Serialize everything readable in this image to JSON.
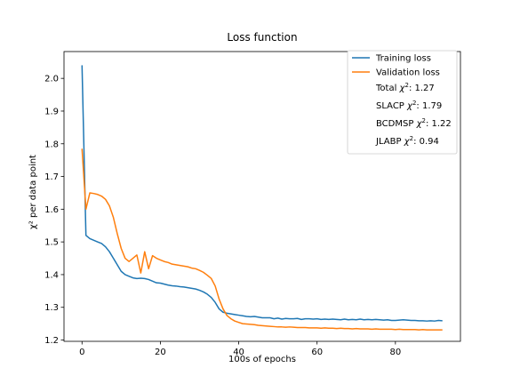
{
  "chart_data": {
    "type": "line",
    "title": "Loss function",
    "xlabel": "100s of epochs",
    "ylabel": "χ² per data point",
    "xlim": [
      -4.6,
      96.6
    ],
    "ylim": [
      1.196,
      2.082
    ],
    "xticks": [
      0,
      20,
      40,
      60,
      80
    ],
    "yticks": [
      1.2,
      1.3,
      1.4,
      1.5,
      1.6,
      1.7,
      1.8,
      1.9,
      2.0
    ],
    "grid": false,
    "legend_position": "top-right",
    "series": [
      {
        "name": "Training loss",
        "color": "#1f77b4",
        "points": [
          [
            0,
            2.04
          ],
          [
            1,
            1.52
          ],
          [
            2,
            1.51
          ],
          [
            3,
            1.505
          ],
          [
            4,
            1.5
          ],
          [
            5,
            1.495
          ],
          [
            6,
            1.485
          ],
          [
            7,
            1.47
          ],
          [
            8,
            1.45
          ],
          [
            9,
            1.43
          ],
          [
            10,
            1.41
          ],
          [
            11,
            1.4
          ],
          [
            12,
            1.395
          ],
          [
            13,
            1.39
          ],
          [
            14,
            1.388
          ],
          [
            15,
            1.389
          ],
          [
            16,
            1.388
          ],
          [
            17,
            1.385
          ],
          [
            18,
            1.38
          ],
          [
            19,
            1.375
          ],
          [
            20,
            1.374
          ],
          [
            21,
            1.371
          ],
          [
            22,
            1.368
          ],
          [
            23,
            1.366
          ],
          [
            24,
            1.365
          ],
          [
            25,
            1.363
          ],
          [
            26,
            1.362
          ],
          [
            27,
            1.36
          ],
          [
            28,
            1.358
          ],
          [
            29,
            1.356
          ],
          [
            30,
            1.352
          ],
          [
            31,
            1.347
          ],
          [
            32,
            1.34
          ],
          [
            33,
            1.33
          ],
          [
            34,
            1.315
          ],
          [
            35,
            1.295
          ],
          [
            36,
            1.285
          ],
          [
            37,
            1.282
          ],
          [
            38,
            1.28
          ],
          [
            39,
            1.278
          ],
          [
            40,
            1.276
          ],
          [
            41,
            1.274
          ],
          [
            42,
            1.272
          ],
          [
            43,
            1.271
          ],
          [
            44,
            1.272
          ],
          [
            45,
            1.27
          ],
          [
            46,
            1.268
          ],
          [
            47,
            1.268
          ],
          [
            48,
            1.268
          ],
          [
            49,
            1.265
          ],
          [
            50,
            1.267
          ],
          [
            51,
            1.264
          ],
          [
            52,
            1.266
          ],
          [
            53,
            1.265
          ],
          [
            54,
            1.265
          ],
          [
            55,
            1.266
          ],
          [
            56,
            1.263
          ],
          [
            57,
            1.265
          ],
          [
            58,
            1.265
          ],
          [
            59,
            1.264
          ],
          [
            60,
            1.265
          ],
          [
            61,
            1.263
          ],
          [
            62,
            1.264
          ],
          [
            63,
            1.263
          ],
          [
            64,
            1.264
          ],
          [
            65,
            1.263
          ],
          [
            66,
            1.262
          ],
          [
            67,
            1.264
          ],
          [
            68,
            1.262
          ],
          [
            69,
            1.263
          ],
          [
            70,
            1.262
          ],
          [
            71,
            1.264
          ],
          [
            72,
            1.262
          ],
          [
            73,
            1.263
          ],
          [
            74,
            1.262
          ],
          [
            75,
            1.263
          ],
          [
            76,
            1.262
          ],
          [
            77,
            1.261
          ],
          [
            78,
            1.262
          ],
          [
            79,
            1.26
          ],
          [
            80,
            1.26
          ],
          [
            81,
            1.261
          ],
          [
            82,
            1.262
          ],
          [
            83,
            1.261
          ],
          [
            84,
            1.26
          ],
          [
            85,
            1.26
          ],
          [
            86,
            1.259
          ],
          [
            87,
            1.259
          ],
          [
            88,
            1.258
          ],
          [
            89,
            1.259
          ],
          [
            90,
            1.258
          ],
          [
            91,
            1.26
          ],
          [
            92,
            1.259
          ]
        ]
      },
      {
        "name": "Validation loss",
        "color": "#ff7f0e",
        "points": [
          [
            0,
            1.785
          ],
          [
            1,
            1.6
          ],
          [
            2,
            1.65
          ],
          [
            3,
            1.648
          ],
          [
            4,
            1.645
          ],
          [
            5,
            1.64
          ],
          [
            6,
            1.63
          ],
          [
            7,
            1.61
          ],
          [
            8,
            1.575
          ],
          [
            9,
            1.525
          ],
          [
            10,
            1.48
          ],
          [
            11,
            1.45
          ],
          [
            12,
            1.44
          ],
          [
            13,
            1.45
          ],
          [
            14,
            1.46
          ],
          [
            15,
            1.405
          ],
          [
            16,
            1.47
          ],
          [
            17,
            1.418
          ],
          [
            18,
            1.458
          ],
          [
            19,
            1.45
          ],
          [
            20,
            1.445
          ],
          [
            21,
            1.44
          ],
          [
            22,
            1.437
          ],
          [
            23,
            1.432
          ],
          [
            24,
            1.43
          ],
          [
            25,
            1.428
          ],
          [
            26,
            1.426
          ],
          [
            27,
            1.424
          ],
          [
            28,
            1.42
          ],
          [
            29,
            1.418
          ],
          [
            30,
            1.413
          ],
          [
            31,
            1.407
          ],
          [
            32,
            1.398
          ],
          [
            33,
            1.388
          ],
          [
            34,
            1.365
          ],
          [
            35,
            1.325
          ],
          [
            36,
            1.295
          ],
          [
            37,
            1.275
          ],
          [
            38,
            1.265
          ],
          [
            39,
            1.258
          ],
          [
            40,
            1.254
          ],
          [
            41,
            1.25
          ],
          [
            42,
            1.249
          ],
          [
            43,
            1.248
          ],
          [
            44,
            1.247
          ],
          [
            45,
            1.245
          ],
          [
            46,
            1.244
          ],
          [
            47,
            1.243
          ],
          [
            48,
            1.242
          ],
          [
            49,
            1.241
          ],
          [
            50,
            1.24
          ],
          [
            51,
            1.24
          ],
          [
            52,
            1.239
          ],
          [
            53,
            1.24
          ],
          [
            54,
            1.239
          ],
          [
            55,
            1.238
          ],
          [
            56,
            1.238
          ],
          [
            57,
            1.238
          ],
          [
            58,
            1.237
          ],
          [
            59,
            1.237
          ],
          [
            60,
            1.237
          ],
          [
            61,
            1.236
          ],
          [
            62,
            1.237
          ],
          [
            63,
            1.236
          ],
          [
            64,
            1.236
          ],
          [
            65,
            1.235
          ],
          [
            66,
            1.236
          ],
          [
            67,
            1.235
          ],
          [
            68,
            1.235
          ],
          [
            69,
            1.234
          ],
          [
            70,
            1.235
          ],
          [
            71,
            1.234
          ],
          [
            72,
            1.234
          ],
          [
            73,
            1.234
          ],
          [
            74,
            1.233
          ],
          [
            75,
            1.234
          ],
          [
            76,
            1.233
          ],
          [
            77,
            1.233
          ],
          [
            78,
            1.233
          ],
          [
            79,
            1.233
          ],
          [
            80,
            1.232
          ],
          [
            81,
            1.233
          ],
          [
            82,
            1.232
          ],
          [
            83,
            1.232
          ],
          [
            84,
            1.232
          ],
          [
            85,
            1.232
          ],
          [
            86,
            1.231
          ],
          [
            87,
            1.232
          ],
          [
            88,
            1.231
          ],
          [
            89,
            1.231
          ],
          [
            90,
            1.231
          ],
          [
            91,
            1.231
          ],
          [
            92,
            1.231
          ]
        ]
      }
    ],
    "legend_extra": [
      {
        "label": "Total",
        "value": "1.27"
      },
      {
        "label": "SLACP",
        "value": "1.79"
      },
      {
        "label": "BCDMSP",
        "value": "1.22"
      },
      {
        "label": "JLABP",
        "value": "0.94"
      }
    ]
  }
}
